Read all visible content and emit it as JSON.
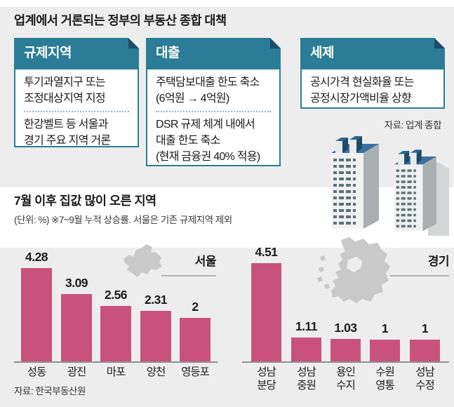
{
  "page": {
    "title": "업계에서 거론되는 정부의 부동산 종합 대책",
    "source_top": "자료: 업계 종합"
  },
  "boxes": [
    {
      "header": "규제지역",
      "items": [
        "투기과열지구 또는\n조정대상지역 지정",
        "한강벨트 등 서울과\n경기 주요 지역 거론"
      ]
    },
    {
      "header": "대출",
      "items": [
        "주택담보대출 한도 축소\n(6억원 → 4억원)",
        "DSR 규제 체계 내에서\n대출 한도 축소\n(현재 금융권 40% 적용)"
      ]
    },
    {
      "header": "세제",
      "items": [
        "공시가격 현실화율 또는\n공정시장가액비율 상향"
      ]
    }
  ],
  "chart_section": {
    "title": "7월 이후 집값 많이 오른 지역",
    "subtitle": "(단위: %)  ※7~9월 누적 상승률. 서울은 기존 규제지역 제외",
    "source": "자료: 한국부동산원"
  },
  "chart_data": [
    {
      "type": "bar",
      "region_label": "서울",
      "categories": [
        "성동",
        "광진",
        "마포",
        "양천",
        "영등포"
      ],
      "values": [
        4.28,
        3.09,
        2.56,
        2.31,
        2
      ],
      "unit": "%",
      "ylim": [
        0,
        5
      ],
      "bar_color": "#c9527d",
      "note": "7~9월 누적 상승률"
    },
    {
      "type": "bar",
      "region_label": "경기",
      "categories": [
        "성남\n분당",
        "성남\n중원",
        "용인\n수지",
        "수원\n영통",
        "성남\n수정"
      ],
      "values": [
        4.51,
        1.11,
        1.03,
        1,
        1
      ],
      "unit": "%",
      "ylim": [
        0,
        5
      ],
      "bar_color": "#c9527d",
      "note": "7~9월 누적 상승률"
    }
  ],
  "colors": {
    "accent_teal": "#2b7c97",
    "fold_dark": "#1a4e66",
    "bar_pink": "#c9527d",
    "map_gray": "#c9c9c9",
    "roof_blue": "#38719f",
    "background": "#ededed"
  }
}
